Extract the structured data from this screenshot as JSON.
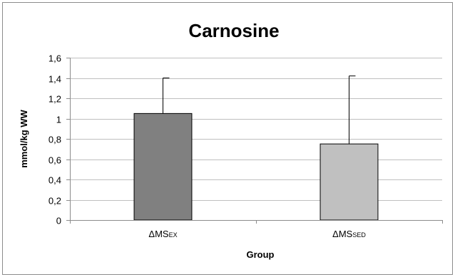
{
  "chart_data": {
    "type": "bar",
    "title": "Carnosine",
    "xlabel": "Group",
    "ylabel": "mmol/kg WW",
    "categories": [
      {
        "main": "ΔMS",
        "sub": "EX"
      },
      {
        "main": "ΔMS",
        "sub": "SED"
      }
    ],
    "values": [
      1.05,
      0.75
    ],
    "error_upper": [
      1.4,
      1.42
    ],
    "bar_colors": [
      "#808080",
      "#c0c0c0"
    ],
    "ylim": [
      0,
      1.6
    ],
    "yticks": [
      0,
      0.2,
      0.4,
      0.6,
      0.8,
      1,
      1.2,
      1.4,
      1.6
    ],
    "ytick_labels": [
      "0",
      "0,2",
      "0,4",
      "0,6",
      "0,8",
      "1",
      "1,2",
      "1,4",
      "1,6"
    ],
    "grid": true,
    "legend": "none"
  }
}
